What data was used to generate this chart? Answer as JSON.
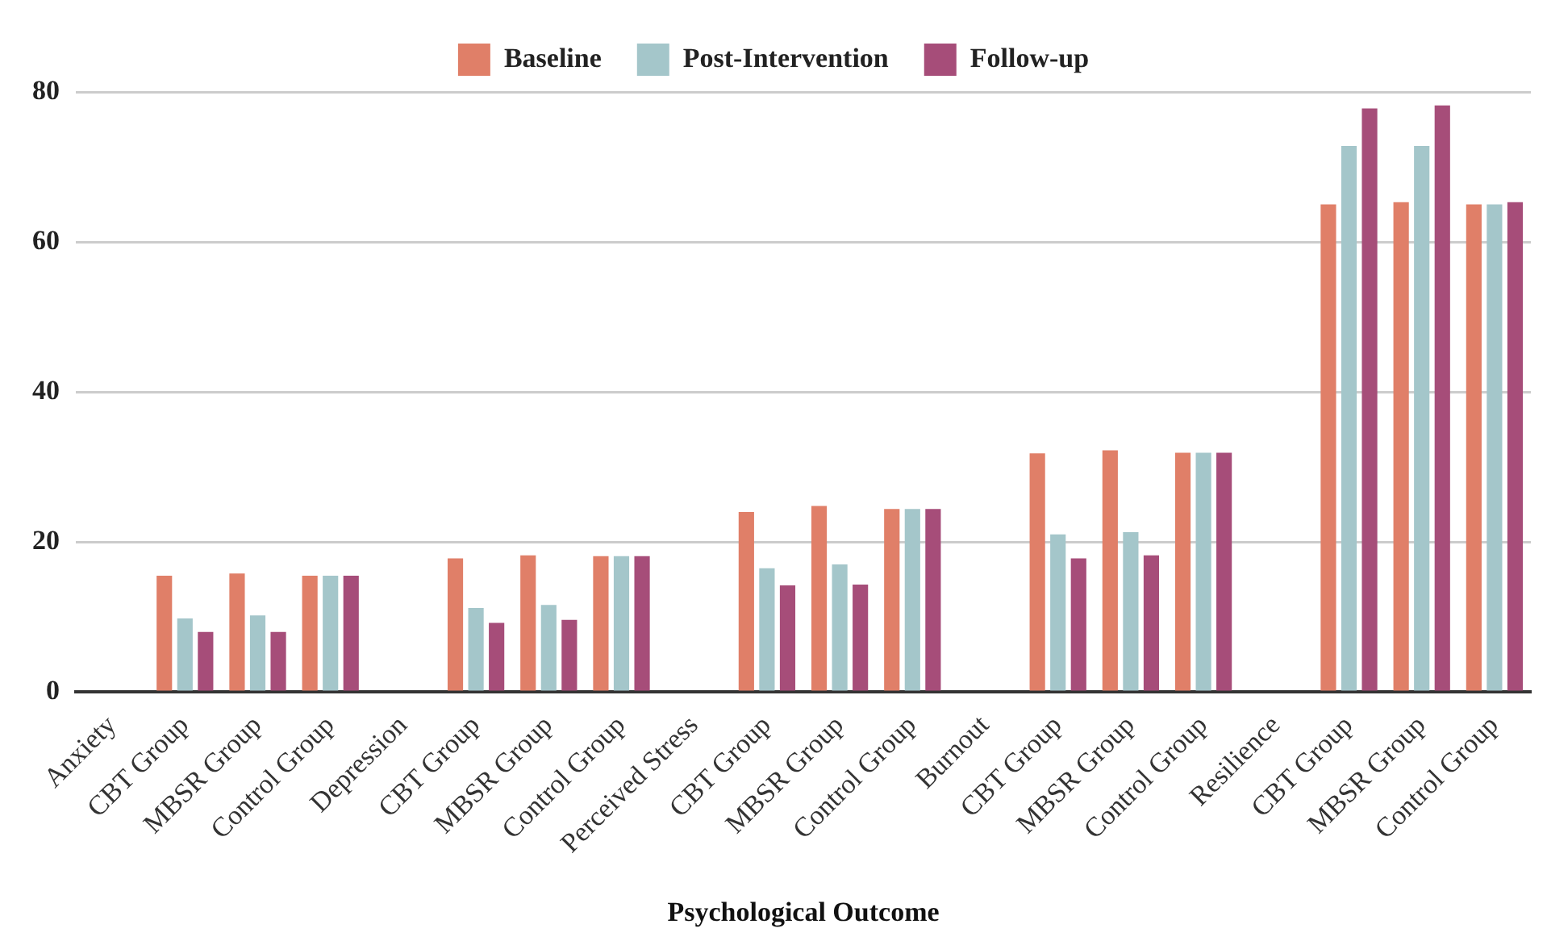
{
  "chart_data": {
    "type": "bar",
    "xlabel": "Psychological Outcome",
    "categories": [
      "Anxiety",
      "CBT Group",
      "MBSR Group",
      "Control Group",
      "Depression",
      "CBT Group",
      "MBSR Group",
      "Control Group",
      "Perceived Stress",
      "CBT Group",
      "MBSR Group",
      "Control Group",
      "Burnout",
      "CBT Group",
      "MBSR Group",
      "Control Group",
      "Resilience",
      "CBT Group",
      "MBSR Group",
      "Control Group"
    ],
    "series": [
      {
        "name": "Baseline",
        "color": "#e07f68",
        "values": [
          null,
          15.5,
          15.8,
          15.5,
          null,
          17.8,
          18.2,
          18.1,
          null,
          24.0,
          24.8,
          24.4,
          null,
          31.8,
          32.2,
          31.9,
          null,
          65.0,
          65.3,
          65.0
        ]
      },
      {
        "name": "Post-Intervention",
        "color": "#a4c6ca",
        "values": [
          null,
          9.8,
          10.2,
          15.5,
          null,
          11.2,
          11.6,
          18.1,
          null,
          16.5,
          17.0,
          24.4,
          null,
          21.0,
          21.3,
          31.9,
          null,
          72.8,
          72.8,
          65.0
        ]
      },
      {
        "name": "Follow-up",
        "color": "#a64d79",
        "values": [
          null,
          8.0,
          8.0,
          15.5,
          null,
          9.2,
          9.6,
          18.1,
          null,
          14.2,
          14.3,
          24.4,
          null,
          17.8,
          18.2,
          31.9,
          null,
          77.8,
          78.2,
          65.3
        ]
      }
    ],
    "ylim": [
      0,
      80
    ],
    "yticks": [
      0,
      20,
      40,
      60,
      80
    ],
    "grid": "y",
    "legend": "top"
  }
}
